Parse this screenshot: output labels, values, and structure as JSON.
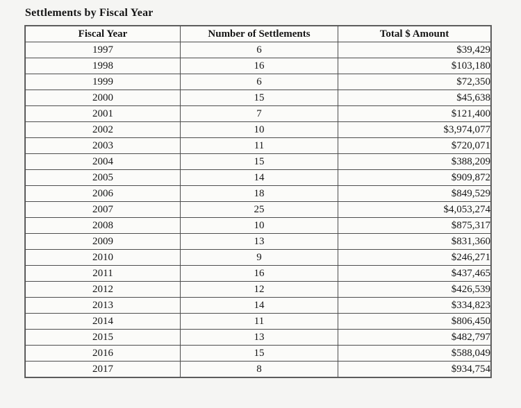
{
  "page_title": "Settlements by Fiscal Year",
  "colors": {
    "page_background": "#f5f5f3",
    "table_background": "#fbfbf9",
    "border": "#4d4d4d",
    "text": "#151515"
  },
  "table": {
    "columns": [
      "Fiscal Year",
      "Number of Settlements",
      "Total $ Amount"
    ],
    "rows": [
      {
        "year": "1997",
        "settlements": "6",
        "amount": "$39,429"
      },
      {
        "year": "1998",
        "settlements": "16",
        "amount": "$103,180"
      },
      {
        "year": "1999",
        "settlements": "6",
        "amount": "$72,350"
      },
      {
        "year": "2000",
        "settlements": "15",
        "amount": "$45,638"
      },
      {
        "year": "2001",
        "settlements": "7",
        "amount": "$121,400"
      },
      {
        "year": "2002",
        "settlements": "10",
        "amount": "$3,974,077"
      },
      {
        "year": "2003",
        "settlements": "11",
        "amount": "$720,071"
      },
      {
        "year": "2004",
        "settlements": "15",
        "amount": "$388,209"
      },
      {
        "year": "2005",
        "settlements": "14",
        "amount": "$909,872"
      },
      {
        "year": "2006",
        "settlements": "18",
        "amount": "$849,529"
      },
      {
        "year": "2007",
        "settlements": "25",
        "amount": "$4,053,274"
      },
      {
        "year": "2008",
        "settlements": "10",
        "amount": "$875,317"
      },
      {
        "year": "2009",
        "settlements": "13",
        "amount": "$831,360"
      },
      {
        "year": "2010",
        "settlements": "9",
        "amount": "$246,271"
      },
      {
        "year": "2011",
        "settlements": "16",
        "amount": "$437,465"
      },
      {
        "year": "2012",
        "settlements": "12",
        "amount": "$426,539"
      },
      {
        "year": "2013",
        "settlements": "14",
        "amount": "$334,823"
      },
      {
        "year": "2014",
        "settlements": "11",
        "amount": "$806,450"
      },
      {
        "year": "2015",
        "settlements": "13",
        "amount": "$482,797"
      },
      {
        "year": "2016",
        "settlements": "15",
        "amount": "$588,049"
      },
      {
        "year": "2017",
        "settlements": "8",
        "amount": "$934,754"
      }
    ]
  },
  "chart_data": {
    "type": "table",
    "title": "Settlements by Fiscal Year",
    "categories": [
      "1997",
      "1998",
      "1999",
      "2000",
      "2001",
      "2002",
      "2003",
      "2004",
      "2005",
      "2006",
      "2007",
      "2008",
      "2009",
      "2010",
      "2011",
      "2012",
      "2013",
      "2014",
      "2015",
      "2016",
      "2017"
    ],
    "series": [
      {
        "name": "Number of Settlements",
        "values": [
          6,
          16,
          6,
          15,
          7,
          10,
          11,
          15,
          14,
          18,
          25,
          10,
          13,
          9,
          16,
          12,
          14,
          11,
          13,
          15,
          8
        ]
      },
      {
        "name": "Total $ Amount",
        "values": [
          39429,
          103180,
          72350,
          45638,
          121400,
          3974077,
          720071,
          388209,
          909872,
          849529,
          4053274,
          875317,
          831360,
          246271,
          437465,
          426539,
          334823,
          806450,
          482797,
          588049,
          934754
        ]
      }
    ]
  }
}
